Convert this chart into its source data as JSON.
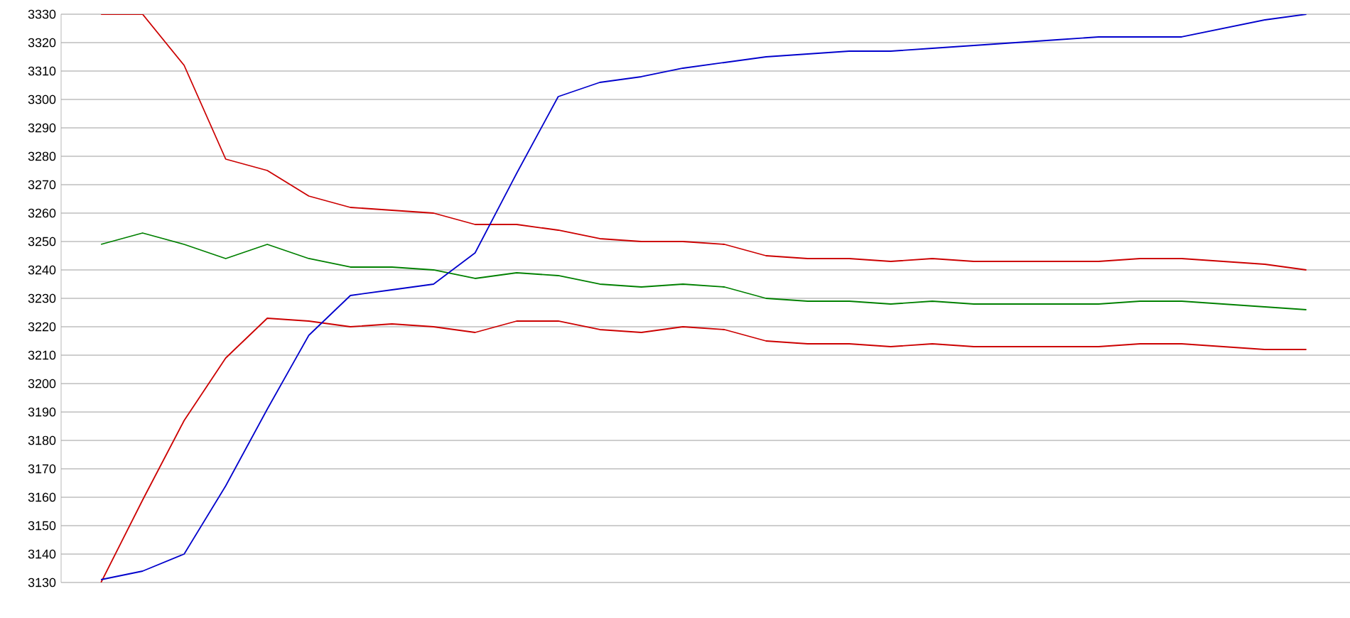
{
  "chart_data": {
    "type": "line",
    "categories": [
      null,
      null,
      null,
      null,
      null,
      null,
      null,
      null,
      null,
      null,
      null,
      null,
      null,
      null,
      null,
      null,
      null,
      null,
      null,
      null,
      null,
      null,
      null,
      null,
      null,
      null,
      null,
      null,
      null,
      null
    ],
    "series": [
      {
        "color": "#cc0000",
        "values": [
          3330,
          3330,
          3312,
          3279,
          3275,
          3266,
          3262,
          3261,
          3260,
          3256,
          3256,
          3254,
          3251,
          3250,
          3250,
          3249,
          3245,
          3244,
          3244,
          3243,
          3244,
          3243,
          3243,
          3243,
          3243,
          3244,
          3244,
          3243,
          3242,
          3240
        ]
      },
      {
        "color": "#008000",
        "values": [
          3249,
          3253,
          3249,
          3244,
          3249,
          3244,
          3241,
          3241,
          3240,
          3237,
          3239,
          3238,
          3235,
          3234,
          3235,
          3234,
          3230,
          3229,
          3229,
          3228,
          3229,
          3228,
          3228,
          3228,
          3228,
          3229,
          3229,
          3228,
          3227,
          3226
        ]
      },
      {
        "color": "#cc0000",
        "values": [
          3130,
          3159,
          3187,
          3209,
          3223,
          3222,
          3220,
          3221,
          3220,
          3218,
          3222,
          3222,
          3219,
          3218,
          3220,
          3219,
          3215,
          3214,
          3214,
          3213,
          3214,
          3213,
          3213,
          3213,
          3213,
          3214,
          3214,
          3213,
          3212,
          3212
        ]
      },
      {
        "color": "#0000cc",
        "values": [
          3131,
          3134,
          3140,
          3164,
          3191,
          3217,
          3231,
          3233,
          3235,
          3246,
          3274,
          3301,
          3306,
          3308,
          3311,
          3313,
          3315,
          3316,
          3317,
          3317,
          3318,
          3319,
          3320,
          3321,
          3322,
          3322,
          3322,
          3325,
          3328,
          3330
        ]
      }
    ],
    "ylim": [
      3130,
      3330
    ],
    "yticks": [
      3130,
      3140,
      3150,
      3160,
      3170,
      3180,
      3190,
      3200,
      3210,
      3220,
      3230,
      3240,
      3250,
      3260,
      3270,
      3280,
      3290,
      3300,
      3310,
      3320,
      3330
    ],
    "grid": "y",
    "marker": "none",
    "line_style": "solid",
    "tick_labels": "y"
  }
}
